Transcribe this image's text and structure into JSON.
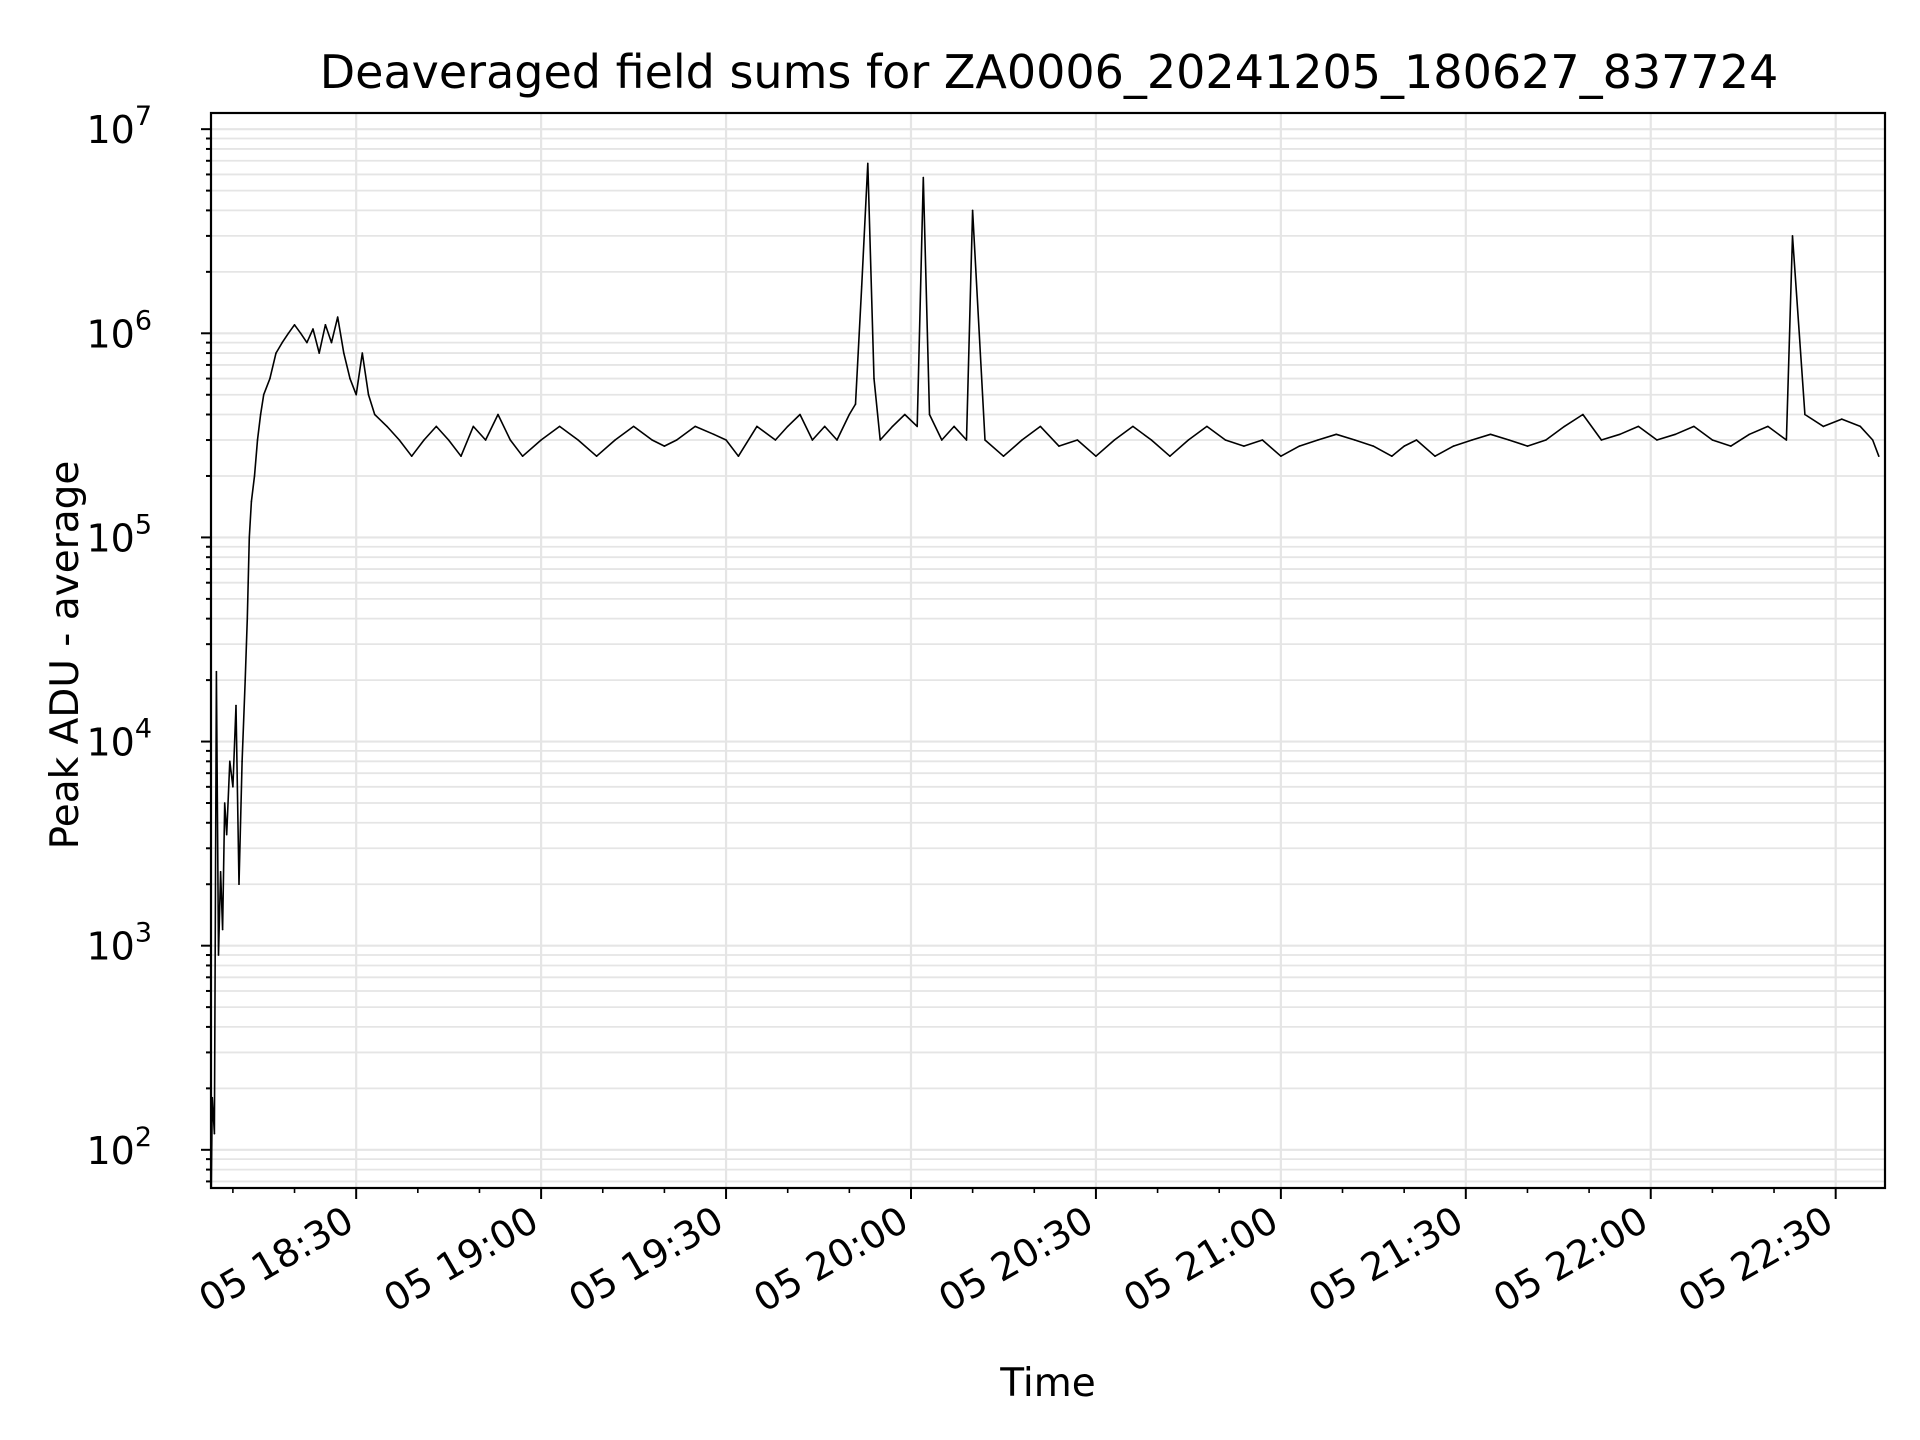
{
  "chart_data": {
    "type": "line",
    "title": "Deaveraged field sums for ZA0006_20241205_180627_837724",
    "xlabel": "Time",
    "ylabel": "Peak ADU - average",
    "x_axis_type": "datetime",
    "y_scale": "log",
    "xlim": [
      "2024-12-05 18:06:27",
      "2024-12-05 22:38:00"
    ],
    "ylim": [
      65,
      12000000
    ],
    "x_ticks": [
      "05 18:30",
      "05 19:00",
      "05 19:30",
      "05 20:00",
      "05 20:30",
      "05 21:00",
      "05 21:30",
      "05 22:00",
      "05 22:30"
    ],
    "y_ticks": [
      {
        "base": "10",
        "exp": "2",
        "value": 100
      },
      {
        "base": "10",
        "exp": "3",
        "value": 1000
      },
      {
        "base": "10",
        "exp": "4",
        "value": 10000
      },
      {
        "base": "10",
        "exp": "5",
        "value": 100000
      },
      {
        "base": "10",
        "exp": "6",
        "value": 1000000
      },
      {
        "base": "10",
        "exp": "7",
        "value": 10000000
      }
    ],
    "grid": true,
    "line_color": "#000000",
    "grid_color": "#e5e5e5",
    "series": [
      {
        "x": [
          "18:06:30",
          "18:06:40",
          "18:07:00",
          "18:07:20",
          "18:07:40",
          "18:08:00",
          "18:08:20",
          "18:08:40",
          "18:09:00",
          "18:09:30",
          "18:10:00",
          "18:10:30",
          "18:11:00",
          "18:11:30",
          "18:12:00",
          "18:12:20",
          "18:12:40",
          "18:13:00",
          "18:13:30",
          "18:14:00",
          "18:14:30",
          "18:15:00",
          "18:16:00",
          "18:17:00",
          "18:18:00",
          "18:19:00",
          "18:20:00",
          "18:21:00",
          "18:22:00",
          "18:23:00",
          "18:24:00",
          "18:25:00",
          "18:26:00",
          "18:27:00",
          "18:28:00",
          "18:29:00",
          "18:30:00",
          "18:31:00",
          "18:32:00",
          "18:33:00",
          "18:35:00",
          "18:37:00",
          "18:39:00",
          "18:41:00",
          "18:43:00",
          "18:45:00",
          "18:47:00",
          "18:49:00",
          "18:51:00",
          "18:53:00",
          "18:55:00",
          "18:57:00",
          "19:00:00",
          "19:03:00",
          "19:06:00",
          "19:09:00",
          "19:12:00",
          "19:15:00",
          "19:18:00",
          "19:20:00",
          "19:22:00",
          "19:25:00",
          "19:28:00",
          "19:30:00",
          "19:32:00",
          "19:35:00",
          "19:38:00",
          "19:40:00",
          "19:42:00",
          "19:44:00",
          "19:46:00",
          "19:48:00",
          "19:50:00",
          "19:51:00",
          "19:52:00",
          "19:53:00",
          "19:54:00",
          "19:55:00",
          "19:57:00",
          "19:59:00",
          "20:01:00",
          "20:02:00",
          "20:03:00",
          "20:05:00",
          "20:07:00",
          "20:09:00",
          "20:10:00",
          "20:12:00",
          "20:15:00",
          "20:18:00",
          "20:21:00",
          "20:24:00",
          "20:27:00",
          "20:30:00",
          "20:33:00",
          "20:36:00",
          "20:39:00",
          "20:42:00",
          "20:45:00",
          "20:48:00",
          "20:51:00",
          "20:54:00",
          "20:57:00",
          "21:00:00",
          "21:03:00",
          "21:06:00",
          "21:09:00",
          "21:12:00",
          "21:15:00",
          "21:18:00",
          "21:20:00",
          "21:22:00",
          "21:25:00",
          "21:28:00",
          "21:31:00",
          "21:34:00",
          "21:37:00",
          "21:40:00",
          "21:43:00",
          "21:46:00",
          "21:49:00",
          "21:52:00",
          "21:55:00",
          "21:58:00",
          "22:01:00",
          "22:04:00",
          "22:07:00",
          "22:10:00",
          "22:13:00",
          "22:16:00",
          "22:19:00",
          "22:22:00",
          "22:23:00",
          "22:25:00",
          "22:28:00",
          "22:31:00",
          "22:34:00",
          "22:36:00",
          "22:37:00"
        ],
        "y": [
          65,
          180,
          120,
          22000,
          900,
          2300,
          1200,
          5000,
          3500,
          8000,
          6000,
          15000,
          2000,
          8000,
          20000,
          40000,
          100000,
          150000,
          200000,
          300000,
          400000,
          500000,
          600000,
          800000,
          900000,
          1000000,
          1100000,
          1000000,
          900000,
          1050000,
          800000,
          1100000,
          900000,
          1200000,
          800000,
          600000,
          500000,
          800000,
          500000,
          400000,
          350000,
          300000,
          250000,
          300000,
          350000,
          300000,
          250000,
          350000,
          300000,
          400000,
          300000,
          250000,
          300000,
          350000,
          300000,
          250000,
          300000,
          350000,
          300000,
          280000,
          300000,
          350000,
          320000,
          300000,
          250000,
          350000,
          300000,
          350000,
          400000,
          300000,
          350000,
          300000,
          400000,
          450000,
          1700000,
          6800000,
          600000,
          300000,
          350000,
          400000,
          350000,
          5800000,
          400000,
          300000,
          350000,
          300000,
          4000000,
          300000,
          250000,
          300000,
          350000,
          280000,
          300000,
          250000,
          300000,
          350000,
          300000,
          250000,
          300000,
          350000,
          300000,
          280000,
          300000,
          250000,
          280000,
          300000,
          320000,
          300000,
          280000,
          250000,
          280000,
          300000,
          250000,
          280000,
          300000,
          320000,
          300000,
          280000,
          300000,
          350000,
          400000,
          300000,
          320000,
          350000,
          300000,
          320000,
          350000,
          300000,
          280000,
          320000,
          350000,
          300000,
          3000000,
          400000,
          350000,
          380000,
          350000,
          300000,
          250000
        ]
      }
    ]
  }
}
